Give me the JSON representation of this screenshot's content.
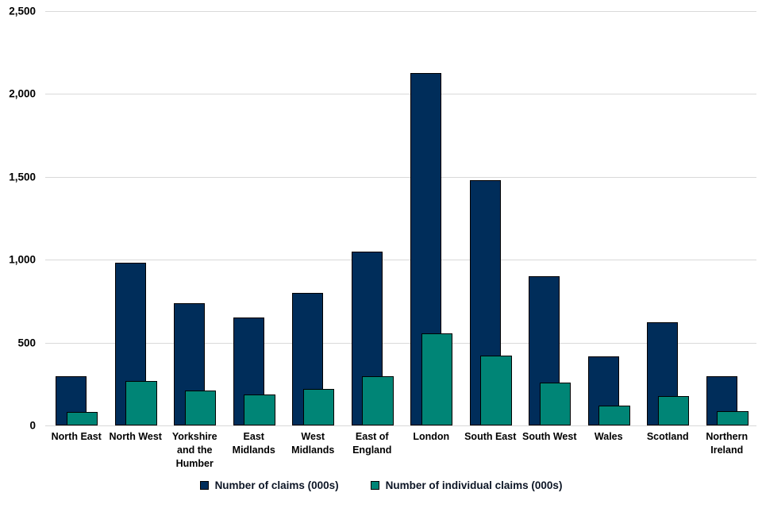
{
  "chart_data": {
    "type": "bar",
    "title": "",
    "categories": [
      "North East",
      "North West",
      "Yorkshire and the Humber",
      "East Midlands",
      "West Midlands",
      "East of England",
      "London",
      "South East",
      "South West",
      "Wales",
      "Scotland",
      "Northern Ireland"
    ],
    "series": [
      {
        "name": "Number of claims (000s)",
        "color": "#002d5a",
        "values": [
          295,
          980,
          740,
          650,
          800,
          1050,
          2125,
          1480,
          900,
          415,
          625,
          295
        ]
      },
      {
        "name": "Number of individual claims (000s)",
        "color": "#008576",
        "values": [
          80,
          270,
          210,
          185,
          220,
          295,
          555,
          420,
          260,
          120,
          175,
          85
        ]
      }
    ],
    "ylim": [
      0,
      2500
    ],
    "yticks": [
      {
        "v": 0,
        "label": "0"
      },
      {
        "v": 500,
        "label": "500"
      },
      {
        "v": 1000,
        "label": "1,000"
      },
      {
        "v": 1500,
        "label": "1,500"
      },
      {
        "v": 2000,
        "label": "2,000"
      },
      {
        "v": 2500,
        "label": "2,500"
      }
    ],
    "grid": true,
    "legend_position": "bottom",
    "bar_style": "overlapping-clustered"
  },
  "colors": {
    "background": "#ffffff",
    "gridline": "#d9d9d9",
    "bar_border": "#000000",
    "axis_text": "#000000",
    "legend_text": "#0d1626"
  }
}
